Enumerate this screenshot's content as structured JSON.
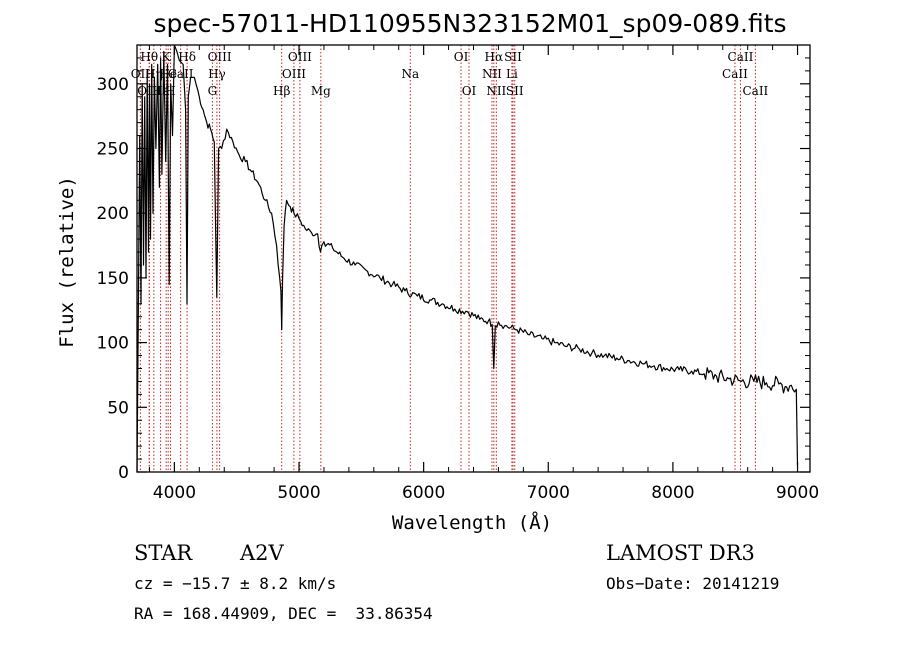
{
  "chart_data": {
    "type": "line",
    "title": "spec-57011-HD110955N323152M01_sp09-089.fits",
    "xlabel": "Wavelength (Å)",
    "ylabel": "Flux (relative)",
    "xlim": [
      3700,
      9100
    ],
    "ylim": [
      0,
      330
    ],
    "x_ticks": [
      4000,
      5000,
      6000,
      7000,
      8000,
      9000
    ],
    "x_tick_labels": [
      "4000",
      "5000",
      "6000",
      "7000",
      "8000",
      "9000"
    ],
    "y_ticks": [
      0,
      50,
      100,
      150,
      200,
      250,
      300
    ],
    "y_tick_labels": [
      "0",
      "50",
      "100",
      "150",
      "200",
      "250",
      "300"
    ],
    "series": [
      {
        "name": "flux",
        "x": [
          3700,
          3712,
          3722,
          3732,
          3742,
          3752,
          3762,
          3772,
          3782,
          3792,
          3800,
          3808,
          3818,
          3828,
          3840,
          3852,
          3866,
          3880,
          3889,
          3900,
          3915,
          3930,
          3945,
          3958,
          3970,
          3985,
          4000,
          4020,
          4040,
          4070,
          4090,
          4101,
          4112,
          4130,
          4160,
          4200,
          4230,
          4260,
          4290,
          4320,
          4340,
          4355,
          4380,
          4420,
          4470,
          4520,
          4570,
          4620,
          4680,
          4730,
          4780,
          4820,
          4845,
          4855,
          4861,
          4868,
          4880,
          4900,
          4930,
          4960,
          5000,
          5050,
          5100,
          5150,
          5172,
          5183,
          5200,
          5270,
          5350,
          5450,
          5550,
          5650,
          5750,
          5850,
          5950,
          6050,
          6150,
          6250,
          6350,
          6450,
          6520,
          6550,
          6563,
          6575,
          6600,
          6650,
          6750,
          6850,
          6950,
          7050,
          7150,
          7250,
          7350,
          7450,
          7550,
          7650,
          7750,
          7850,
          7950,
          8050,
          8150,
          8250,
          8350,
          8450,
          8550,
          8650,
          8750,
          8850,
          8900,
          8950,
          8990,
          9000
        ],
        "values": [
          0,
          140,
          260,
          130,
          300,
          160,
          290,
          150,
          310,
          170,
          300,
          180,
          315,
          200,
          305,
          250,
          315,
          220,
          320,
          230,
          325,
          240,
          315,
          145,
          300,
          260,
          330,
          325,
          318,
          315,
          280,
          130,
          290,
          305,
          305,
          290,
          280,
          270,
          265,
          255,
          135,
          250,
          250,
          265,
          255,
          245,
          240,
          232,
          222,
          210,
          200,
          175,
          150,
          140,
          110,
          150,
          190,
          210,
          205,
          200,
          196,
          188,
          185,
          184,
          170,
          175,
          178,
          173,
          166,
          160,
          155,
          150,
          145,
          140,
          136,
          133,
          130,
          126,
          124,
          118,
          117,
          114,
          80,
          113,
          116,
          113,
          110,
          106,
          103,
          100,
          97,
          95,
          92,
          90,
          88,
          86,
          84,
          82,
          80,
          79,
          78,
          76,
          74,
          72,
          70,
          70,
          69,
          68,
          66,
          67,
          64,
          5
        ]
      }
    ],
    "spectral_lines": [
      {
        "label": "OII",
        "wave": 3727,
        "row": 2
      },
      {
        "label": "Hθ",
        "wave": 3798,
        "row": 1
      },
      {
        "label": "OIII",
        "wave": 3799,
        "row": 3
      },
      {
        "label": "Hη",
        "wave": 3835,
        "row": 2
      },
      {
        "label": "Hε",
        "wave": 3889,
        "row": 3
      },
      {
        "label": "K",
        "wave": 3934,
        "row": 1
      },
      {
        "label": "He",
        "wave": 3950,
        "row": 2
      },
      {
        "label": "H",
        "wave": 3969,
        "row": 3
      },
      {
        "label": "Hδ",
        "wave": 4102,
        "row": 1
      },
      {
        "label": "CaII",
        "wave": 4050,
        "row": 2
      },
      {
        "label": "OIII",
        "wave": 4363,
        "row": 1
      },
      {
        "label": "Hγ",
        "wave": 4341,
        "row": 2
      },
      {
        "label": "G",
        "wave": 4305,
        "row": 3
      },
      {
        "label": "Hβ",
        "wave": 4861,
        "row": 3
      },
      {
        "label": "OIII",
        "wave": 5007,
        "row": 1
      },
      {
        "label": "OIII",
        "wave": 4959,
        "row": 2
      },
      {
        "label": "Mg",
        "wave": 5175,
        "row": 3
      },
      {
        "label": "Na",
        "wave": 5893,
        "row": 2
      },
      {
        "label": "OI",
        "wave": 6300,
        "row": 1
      },
      {
        "label": "OI",
        "wave": 6364,
        "row": 3
      },
      {
        "label": "Hα",
        "wave": 6563,
        "row": 1
      },
      {
        "label": "NII",
        "wave": 6548,
        "row": 2
      },
      {
        "label": "NII",
        "wave": 6583,
        "row": 3
      },
      {
        "label": "SII",
        "wave": 6717,
        "row": 1
      },
      {
        "label": "Li",
        "wave": 6708,
        "row": 2
      },
      {
        "label": "SII",
        "wave": 6731,
        "row": 3
      },
      {
        "label": "CaII",
        "wave": 8542,
        "row": 1
      },
      {
        "label": "CaII",
        "wave": 8498,
        "row": 2
      },
      {
        "label": "CaII",
        "wave": 8662,
        "row": 3
      }
    ],
    "annotations": {
      "object_type": "STAR",
      "subclass": "A2V",
      "survey": "LAMOST DR3",
      "redshift": "cz = −15.7 ± 8.2 km/s",
      "obs_date": "Obs−Date: 20141219",
      "coords": "RA = 168.44909, DEC =  33.86354"
    }
  },
  "colors": {
    "spectrum": "#000000",
    "line_marker": "#cc2222",
    "axes": "#000000"
  }
}
